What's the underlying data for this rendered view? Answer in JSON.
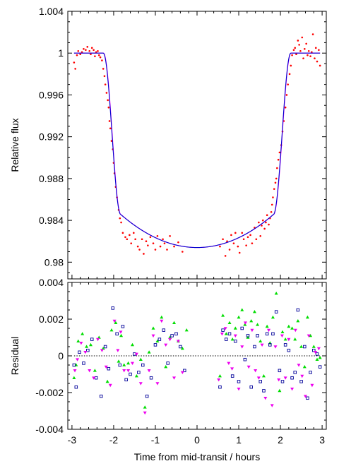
{
  "chart_data": [
    {
      "type": "line",
      "panel": "light-curve",
      "ylabel": "Relative flux",
      "xlim": [
        -3.1,
        3.1
      ],
      "ylim": [
        0.9784,
        1.004
      ],
      "yticks": [
        0.98,
        0.984,
        0.988,
        0.992,
        0.996,
        1,
        1.004
      ],
      "ytick_labels": [
        "0.98",
        "0.984",
        "0.988",
        "0.992",
        "0.996",
        "1",
        "1.004"
      ],
      "transit_model": {
        "baseline": 1.0,
        "depth": 0.0186,
        "contact_half_width_hours": 2.25,
        "ingress_hours": 0.42,
        "limb_darkening": 0.45
      },
      "series": [
        {
          "role": "observed",
          "marker": "dot",
          "color": "#ff0000",
          "x": [
            -2.95,
            -2.92,
            -2.88,
            -2.85,
            -2.8,
            -2.76,
            -2.72,
            -2.67,
            -2.63,
            -2.58,
            -2.55,
            -2.52,
            -2.48,
            -2.45,
            -2.42,
            -2.38,
            -2.35,
            -2.32,
            -2.28,
            -2.25,
            -2.22,
            -2.2,
            -2.17,
            -2.14,
            -2.12,
            -2.1,
            -2.08,
            -2.05,
            -2.02,
            -2.0,
            -1.98,
            -1.95,
            -1.92,
            -1.88,
            -1.85,
            -1.82,
            -1.78,
            -1.72,
            -1.68,
            -1.62,
            -1.58,
            -1.52,
            -1.48,
            -1.42,
            -1.38,
            -1.32,
            -1.28,
            -1.22,
            -1.18,
            -1.12,
            -1.05,
            -1.0,
            -0.95,
            -0.88,
            -0.82,
            -0.78,
            -0.72,
            -0.65,
            -0.55,
            -0.45,
            -0.35,
            0.55,
            0.62,
            0.68,
            0.72,
            0.78,
            0.82,
            0.88,
            0.92,
            0.98,
            1.02,
            1.08,
            1.12,
            1.18,
            1.22,
            1.28,
            1.32,
            1.38,
            1.42,
            1.48,
            1.52,
            1.55,
            1.58,
            1.62,
            1.65,
            1.68,
            1.72,
            1.75,
            1.78,
            1.8,
            1.82,
            1.85,
            1.88,
            1.9,
            1.92,
            1.95,
            1.98,
            2.02,
            2.05,
            2.08,
            2.12,
            2.15,
            2.18,
            2.22,
            2.25,
            2.28,
            2.32,
            2.35,
            2.38,
            2.42,
            2.45,
            2.48,
            2.52,
            2.55,
            2.58,
            2.62,
            2.65,
            2.68,
            2.72,
            2.75,
            2.78,
            2.82,
            2.85,
            2.88,
            2.92,
            2.95
          ],
          "y": [
            0.9991,
            0.9985,
            0.9998,
            1.0002,
            0.9999,
            1.0001,
            1.0004,
            1.0003,
            1.0006,
            1.0002,
            0.9999,
            1.0005,
            1.0003,
            0.9997,
            1.0001,
            1.0002,
            0.9998,
            0.9996,
            0.9993,
            0.9985,
            0.9978,
            0.997,
            0.9962,
            0.9955,
            0.9948,
            0.9935,
            0.9928,
            0.9916,
            0.9908,
            0.9895,
            0.9885,
            0.9872,
            0.9862,
            0.985,
            0.9842,
            0.9838,
            0.9828,
            0.9824,
            0.9822,
            0.9826,
            0.9818,
            0.9828,
            0.9822,
            0.9815,
            0.9812,
            0.9822,
            0.9808,
            0.982,
            0.9816,
            0.9824,
            0.9818,
            0.9812,
            0.9825,
            0.9815,
            0.9822,
            0.9818,
            0.9812,
            0.9825,
            0.9815,
            0.9819,
            0.981,
            0.9815,
            0.9822,
            0.9806,
            0.982,
            0.9812,
            0.9826,
            0.9818,
            0.9828,
            0.9815,
            0.9809,
            0.9828,
            0.9822,
            0.9816,
            0.9824,
            0.9826,
            0.9818,
            0.9833,
            0.9822,
            0.9838,
            0.9825,
            0.9835,
            0.984,
            0.9832,
            0.9838,
            0.9845,
            0.9836,
            0.9842,
            0.9848,
            0.9855,
            0.9862,
            0.987,
            0.9876,
            0.988,
            0.989,
            0.9898,
            0.9905,
            0.9912,
            0.9925,
            0.9935,
            0.9948,
            0.996,
            0.997,
            0.998,
            0.9988,
            0.9998,
            1.0003,
            1.0005,
            0.9999,
            1.0012,
            1.0008,
            1.0002,
            1.0015,
            0.9995,
            1.0004,
            1.0009,
            0.9998,
            1.0002,
            0.9997,
            1.0001,
            1.0018,
            0.9995,
            1.0005,
            0.9992,
            1.0003,
            0.9988
          ]
        },
        {
          "role": "model",
          "color": "#ff00ff",
          "x_shift_hours": 0.005
        },
        {
          "role": "model",
          "color": "#0000cc",
          "x_shift_hours": 0.0
        }
      ]
    },
    {
      "type": "scatter",
      "panel": "residuals",
      "ylabel": "Residual",
      "xlabel": "Time from mid-transit / hours",
      "xlim": [
        -3.1,
        3.1
      ],
      "ylim": [
        -0.004,
        0.004
      ],
      "yticks": [
        -0.004,
        -0.002,
        0,
        0.002,
        0.004
      ],
      "ytick_labels": [
        "-0.004",
        "-0.002",
        "0",
        "0.002",
        "0.004"
      ],
      "xticks": [
        -3,
        -2,
        -1,
        0,
        1,
        2,
        3
      ],
      "xtick_labels": [
        "-3",
        "-2",
        "-1",
        "0",
        "1",
        "2",
        "3"
      ],
      "zero_line": {
        "y": 0,
        "style": "dotted"
      },
      "series": [
        {
          "marker": "triangle-up",
          "color": "#00dd00",
          "x": [
            -2.95,
            -2.9,
            -2.85,
            -2.75,
            -2.65,
            -2.55,
            -2.45,
            -2.35,
            -2.25,
            -2.15,
            -2.05,
            -1.95,
            -1.88,
            -1.82,
            -1.75,
            -1.65,
            -1.55,
            -1.45,
            -1.35,
            -1.25,
            -1.15,
            -1.05,
            -0.95,
            -0.85,
            -0.75,
            -0.65,
            -0.55,
            -0.45,
            -0.35,
            -0.25,
            0.55,
            0.62,
            0.7,
            0.78,
            0.85,
            0.92,
            1.0,
            1.08,
            1.15,
            1.22,
            1.3,
            1.38,
            1.45,
            1.52,
            1.6,
            1.68,
            1.75,
            1.82,
            1.9,
            1.98,
            2.05,
            2.12,
            2.2,
            2.28,
            2.35,
            2.42,
            2.5,
            2.58,
            2.65,
            2.72,
            2.8,
            2.88,
            2.95
          ],
          "y": [
            -0.0012,
            -0.0005,
            0.0008,
            0.0012,
            0.0005,
            0.0006,
            -0.0008,
            0.001,
            0.0004,
            -0.0014,
            0.0014,
            0.0018,
            -0.0003,
            0.0011,
            -0.0005,
            -0.0004,
            0.0006,
            -0.0011,
            -0.0002,
            -0.0028,
            0.0002,
            0.0015,
            0.0008,
            0.0021,
            -0.0006,
            0.001,
            0.0018,
            0.0008,
            0.0004,
            0.0014,
            -0.0011,
            0.0022,
            0.0012,
            0.0018,
            0.0009,
            0.0015,
            0.0021,
            0.0025,
            0.0017,
            0.001,
            0.0019,
            0.0024,
            0.0017,
            0.0008,
            -0.0011,
            0.0016,
            0.0007,
            0.0021,
            0.0034,
            -0.0019,
            0.0013,
            0.0009,
            0.0016,
            0.0015,
            0.0009,
            0.0019,
            0.0005,
            -0.0006,
            0.0021,
            0.0011,
            0.0005,
            -0.0002,
            -0.0001
          ]
        },
        {
          "marker": "square-open",
          "color": "#000099",
          "x": [
            -2.95,
            -2.9,
            -2.82,
            -2.72,
            -2.62,
            -2.52,
            -2.42,
            -2.3,
            -2.2,
            -2.12,
            -2.02,
            -1.92,
            -1.85,
            -1.78,
            -1.7,
            -1.6,
            -1.5,
            -1.4,
            -1.3,
            -1.2,
            -1.1,
            -1.0,
            -0.9,
            -0.8,
            -0.7,
            -0.6,
            -0.5,
            -0.4,
            -0.3,
            0.55,
            0.62,
            0.7,
            0.78,
            0.85,
            0.92,
            1.0,
            1.08,
            1.15,
            1.22,
            1.3,
            1.38,
            1.45,
            1.52,
            1.6,
            1.68,
            1.75,
            1.82,
            1.9,
            1.98,
            2.05,
            2.12,
            2.2,
            2.28,
            2.35,
            2.42,
            2.5,
            2.58,
            2.65,
            2.72,
            2.8,
            2.88,
            2.95
          ],
          "y": [
            -0.0005,
            -0.0017,
            0.0002,
            -0.0004,
            0.0003,
            0.0009,
            -0.0012,
            -0.0022,
            0.0005,
            -0.0007,
            0.0026,
            0.0012,
            -0.0005,
            0.0016,
            -0.0013,
            -0.001,
            0.0001,
            -0.0009,
            -0.0005,
            -0.0022,
            -0.0012,
            0.0006,
            0.0009,
            0.0014,
            -0.0004,
            0.0011,
            0.0012,
            0.0005,
            -0.0008,
            -0.0017,
            0.0014,
            0.0009,
            0.0012,
            -0.0011,
            0.0008,
            -0.0014,
            0.0015,
            -0.0002,
            0.0011,
            -0.0017,
            0.0005,
            0.0011,
            -0.0014,
            -0.0019,
            0.0012,
            0.0006,
            0.0012,
            0.0024,
            -0.0008,
            -0.0014,
            0.0006,
            0.0003,
            -0.0012,
            -0.0009,
            0.0025,
            -0.0014,
            0.0005,
            -0.0023,
            -0.0009,
            0.0003,
            0.0001,
            -0.0006
          ]
        },
        {
          "marker": "triangle-down",
          "color": "#ee00ee",
          "x": [
            -2.93,
            -2.87,
            -2.78,
            -2.68,
            -2.58,
            -2.48,
            -2.38,
            -2.28,
            -2.18,
            -2.08,
            -1.98,
            -1.9,
            -1.83,
            -1.75,
            -1.65,
            -1.55,
            -1.45,
            -1.35,
            -1.25,
            -1.15,
            -1.05,
            -0.95,
            -0.85,
            -0.75,
            -0.65,
            -0.55,
            -0.45,
            -0.35,
            0.52,
            0.6,
            0.68,
            0.76,
            0.84,
            0.92,
            1.0,
            1.08,
            1.16,
            1.24,
            1.32,
            1.4,
            1.48,
            1.56,
            1.64,
            1.72,
            1.8,
            1.88,
            1.96,
            2.04,
            2.12,
            2.2,
            2.28,
            2.36,
            2.44,
            2.52,
            2.6,
            2.68,
            2.76,
            2.84,
            2.92
          ],
          "y": [
            -0.0008,
            -0.0002,
            0.0007,
            0.0002,
            -0.0008,
            -0.0012,
            0.0009,
            0.0003,
            -0.0006,
            -0.0016,
            0.0019,
            0.0003,
            0.0013,
            -0.0008,
            -0.0008,
            -0.0004,
            0.0001,
            -0.0015,
            -0.0031,
            -0.0008,
            0.0011,
            -0.0015,
            0.0019,
            0.0006,
            0.0009,
            -0.0012,
            0.0008,
            -0.0009,
            -0.0013,
            0.0012,
            0.0015,
            -0.0004,
            -0.0007,
            0.0011,
            -0.0018,
            0.0005,
            0.0018,
            -0.0006,
            0.0014,
            -0.0008,
            -0.0012,
            0.0006,
            -0.0023,
            0.0014,
            -0.0027,
            0.0005,
            -0.0013,
            0.0011,
            -0.0012,
            0.0009,
            -0.0018,
            0.0014,
            -0.0005,
            -0.0011,
            -0.0022,
            0.0011,
            -0.0016,
            0.0002,
            0.0004
          ]
        }
      ]
    }
  ]
}
